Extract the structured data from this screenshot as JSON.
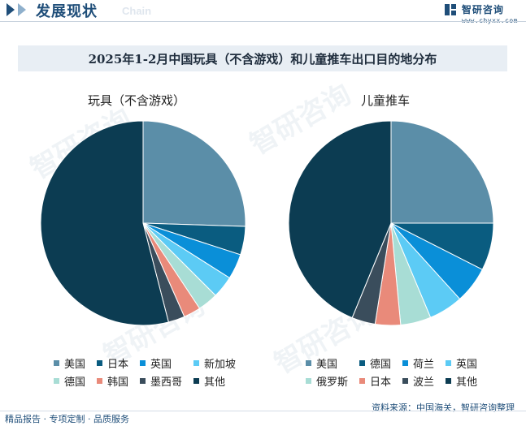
{
  "header": {
    "title": "发展现状",
    "subtitle": "Chain",
    "brand_name": "智研咨询",
    "brand_url": "www.chyxx.com"
  },
  "watermark_text": "智研咨询",
  "chart_title": "2025年1-2月中国玩具（不含游戏）和儿童推车出口目的地分布",
  "chart_data": [
    {
      "type": "pie",
      "title": "玩具（不含游戏）",
      "labels": [
        "美国",
        "日本",
        "英国",
        "新加坡",
        "德国",
        "韩国",
        "墨西哥",
        "其他"
      ],
      "values": [
        25.5,
        4.5,
        4.0,
        3.5,
        3.2,
        2.7,
        2.6,
        54.0
      ],
      "colors": [
        "#5b8ea8",
        "#0a5c80",
        "#0a8fd8",
        "#5ccbf5",
        "#a8ddd5",
        "#e98a7a",
        "#3a4d5c",
        "#0c3c52"
      ],
      "legend_placement": "bottom"
    },
    {
      "type": "pie",
      "title": "儿童推车",
      "labels": [
        "美国",
        "德国",
        "荷兰",
        "英国",
        "俄罗斯",
        "日本",
        "波兰",
        "其他"
      ],
      "values": [
        25.0,
        7.5,
        5.8,
        5.4,
        4.8,
        4.0,
        3.7,
        43.8
      ],
      "colors": [
        "#5b8ea8",
        "#0a5c80",
        "#0a8fd8",
        "#5ccbf5",
        "#a8ddd5",
        "#e98a7a",
        "#3a4d5c",
        "#0c3c52"
      ],
      "legend_placement": "bottom"
    }
  ],
  "footer": {
    "left": "精品报告 · 专项定制 · 品质服务",
    "right": "资料来源：中国海关，智研咨询整理"
  }
}
